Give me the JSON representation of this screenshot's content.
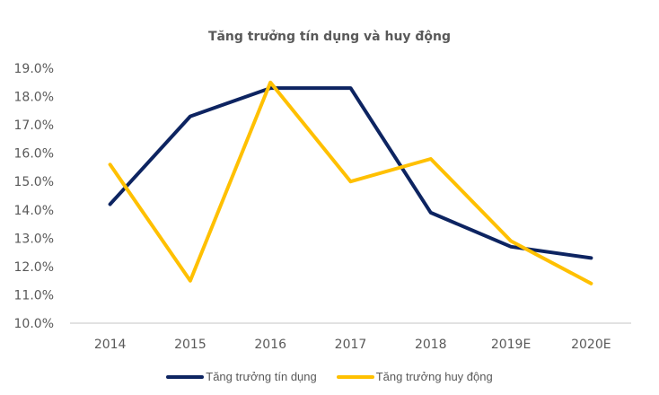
{
  "chart_data": {
    "type": "line",
    "title": "Tăng trưởng tín dụng và huy động",
    "xlabel": "",
    "ylabel": "",
    "categories": [
      "2014",
      "2015",
      "2016",
      "2017",
      "2018",
      "2019E",
      "2020E"
    ],
    "series": [
      {
        "name": "Tăng trưởng tín dụng",
        "color": "#0D2461",
        "values": [
          14.2,
          17.3,
          18.3,
          18.3,
          13.9,
          12.7,
          12.3
        ]
      },
      {
        "name": "Tăng trưởng huy động",
        "color": "#FFC000",
        "values": [
          15.6,
          11.5,
          18.5,
          15.0,
          15.8,
          12.9,
          11.4
        ]
      }
    ],
    "ylim": [
      10.0,
      19.0
    ],
    "yticks": [
      "19.0%",
      "18.0%",
      "17.0%",
      "16.0%",
      "15.0%",
      "14.0%",
      "13.0%",
      "12.0%",
      "11.0%",
      "10.0%"
    ],
    "grid": false,
    "legend_position": "bottom"
  }
}
